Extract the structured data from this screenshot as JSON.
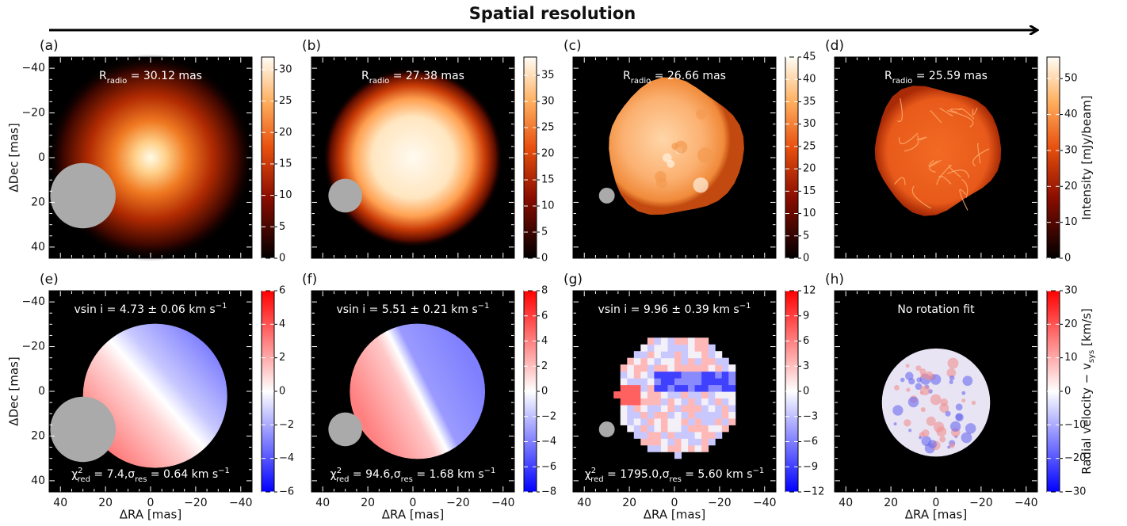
{
  "header": {
    "title": "Spatial resolution"
  },
  "axes": {
    "x_label": "ΔRA [mas]",
    "y_label": "ΔDec [mas]",
    "xlim": [
      45,
      -45
    ],
    "ylim": [
      -45,
      45
    ],
    "ticks": [
      {
        "value": 40,
        "label": "40"
      },
      {
        "value": 20,
        "label": "20"
      },
      {
        "value": 0,
        "label": "0"
      },
      {
        "value": -20,
        "label": "−20"
      },
      {
        "value": -40,
        "label": "−40"
      }
    ]
  },
  "rows": [
    {
      "colorbar_label": [
        {
          "text": "Intensity [mJy/beam]"
        }
      ],
      "colormap": "hot",
      "panels": [
        {
          "label": "(a)",
          "annotation": [
            {
              "text": "R"
            },
            {
              "sub": "radio"
            },
            {
              "text": " = 30.12 mas"
            }
          ],
          "colorbar": {
            "range": [
              0,
              32
            ],
            "ticks": [
              0,
              5,
              10,
              15,
              20,
              25,
              30
            ]
          }
        },
        {
          "label": "(b)",
          "annotation": [
            {
              "text": "R"
            },
            {
              "sub": "radio"
            },
            {
              "text": " = 27.38 mas"
            }
          ],
          "colorbar": {
            "range": [
              0,
              38.5
            ],
            "ticks": [
              0,
              5,
              10,
              15,
              20,
              25,
              30,
              35
            ]
          }
        },
        {
          "label": "(c)",
          "annotation": [
            {
              "text": "R"
            },
            {
              "sub": "radio"
            },
            {
              "text": " = 26.66 mas"
            }
          ],
          "colorbar": {
            "range": [
              0,
              45
            ],
            "ticks": [
              0,
              5,
              10,
              15,
              20,
              25,
              30,
              35,
              40,
              45
            ]
          }
        },
        {
          "label": "(d)",
          "annotation": [
            {
              "text": "R"
            },
            {
              "sub": "radio"
            },
            {
              "text": " = 25.59 mas"
            }
          ],
          "colorbar": {
            "range": [
              0,
              56
            ],
            "ticks": [
              0,
              10,
              20,
              30,
              40,
              50
            ]
          }
        }
      ]
    },
    {
      "colorbar_label": [
        {
          "text": "Radial velocity − v"
        },
        {
          "sub": "sys"
        },
        {
          "text": " [km/s]"
        }
      ],
      "colormap": "bwr",
      "panels": [
        {
          "label": "(e)",
          "annotation": [
            {
              "text": "vsin i = 4.73 ± 0.06 km s"
            },
            {
              "sup": "−1"
            }
          ],
          "footnote": [
            {
              "text": "χ"
            },
            {
              "sup": "2"
            },
            {
              "sub": "red"
            },
            {
              "text": " = 7.4,σ"
            },
            {
              "sub": "res"
            },
            {
              "text": " = 0.64 km s"
            },
            {
              "sup": "−1"
            }
          ],
          "colorbar": {
            "range": [
              -6,
              6
            ],
            "ticks": [
              {
                "value": -6,
                "label": "−6"
              },
              {
                "value": -4,
                "label": "−4"
              },
              {
                "value": -2,
                "label": "−2"
              },
              0,
              2,
              4,
              6
            ]
          }
        },
        {
          "label": "(f)",
          "annotation": [
            {
              "text": "vsin i = 5.51 ± 0.21 km s"
            },
            {
              "sup": "−1"
            }
          ],
          "footnote": [
            {
              "text": "χ"
            },
            {
              "sup": "2"
            },
            {
              "sub": "red"
            },
            {
              "text": " = 94.6,σ"
            },
            {
              "sub": "res"
            },
            {
              "text": " = 1.68 km s"
            },
            {
              "sup": "−1"
            }
          ],
          "colorbar": {
            "range": [
              -8,
              8
            ],
            "ticks": [
              {
                "value": -8,
                "label": "−8"
              },
              {
                "value": -6,
                "label": "−6"
              },
              {
                "value": -4,
                "label": "−4"
              },
              {
                "value": -2,
                "label": "−2"
              },
              0,
              2,
              4,
              6,
              8
            ]
          }
        },
        {
          "label": "(g)",
          "annotation": [
            {
              "text": "vsin i = 9.96 ± 0.39 km s"
            },
            {
              "sup": "−1"
            }
          ],
          "footnote": [
            {
              "text": "χ"
            },
            {
              "sup": "2"
            },
            {
              "sub": "red"
            },
            {
              "text": " = 1795.0,σ"
            },
            {
              "sub": "res"
            },
            {
              "text": " = 5.60 km s"
            },
            {
              "sup": "−1"
            }
          ],
          "colorbar": {
            "range": [
              -12,
              12
            ],
            "ticks": [
              {
                "value": -12,
                "label": "−12"
              },
              {
                "value": -9,
                "label": "−9"
              },
              {
                "value": -6,
                "label": "−6"
              },
              {
                "value": -3,
                "label": "−3"
              },
              0,
              3,
              6,
              9,
              12
            ]
          }
        },
        {
          "label": "(h)",
          "annotation": [
            {
              "text": "No rotation fit"
            }
          ],
          "colorbar": {
            "range": [
              -30,
              30
            ],
            "ticks": [
              {
                "value": -30,
                "label": "−30"
              },
              {
                "value": -20,
                "label": "−20"
              },
              {
                "value": -10,
                "label": "−10"
              },
              0,
              10,
              20,
              30
            ]
          }
        }
      ]
    }
  ]
}
